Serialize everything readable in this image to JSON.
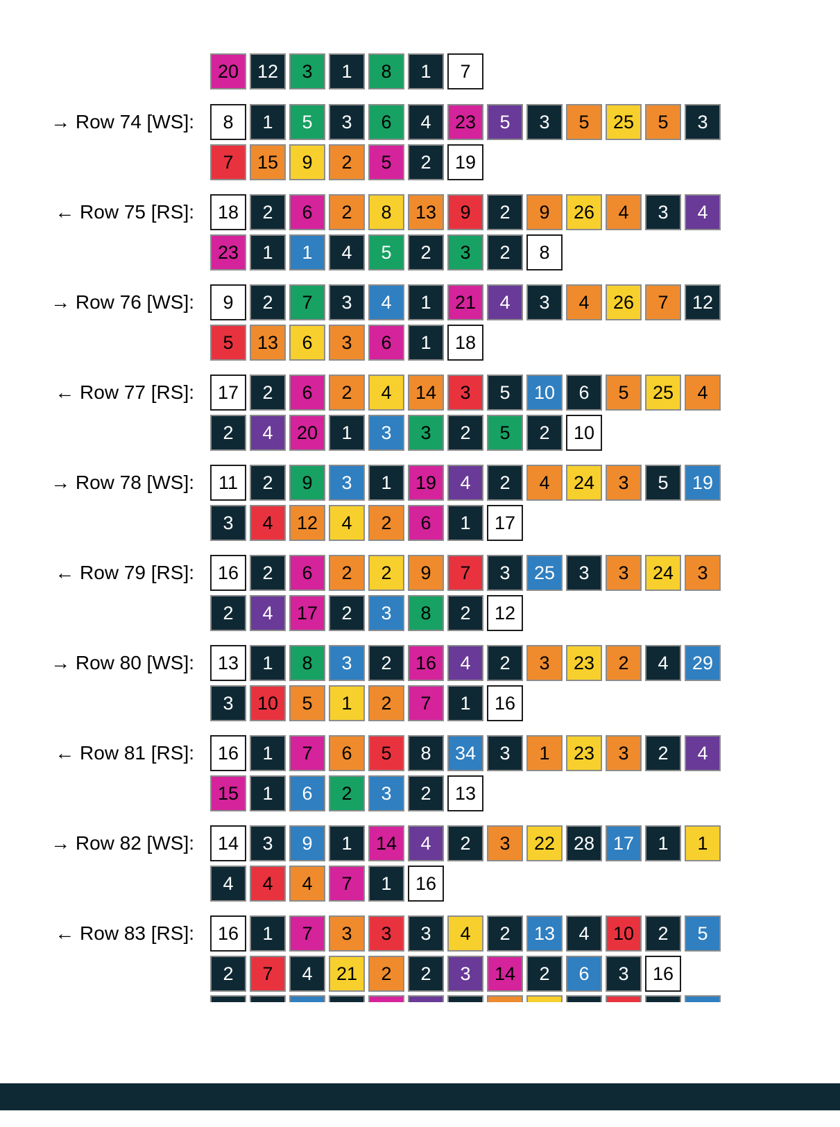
{
  "document_type": "knitting-colorwork-row-by-row-chart",
  "palette": {
    "W": {
      "name": "white",
      "bg": "#ffffff",
      "fg": "#000000",
      "border": "#1c1c1c"
    },
    "K": {
      "name": "dark-navy",
      "bg": "#0f2934",
      "fg": "#ffffff",
      "border": "#8c8c8c"
    },
    "G": {
      "name": "green",
      "bg": "#17a163",
      "fg": "#000000",
      "border": "#8c8c8c"
    },
    "G2": {
      "name": "green-white-text",
      "bg": "#17a163",
      "fg": "#ffffff",
      "border": "#8c8c8c"
    },
    "M": {
      "name": "magenta",
      "bg": "#d4239b",
      "fg": "#000000",
      "border": "#8c8c8c"
    },
    "O": {
      "name": "orange",
      "bg": "#ef8b2d",
      "fg": "#000000",
      "border": "#8c8c8c"
    },
    "Y": {
      "name": "yellow",
      "bg": "#f8d02d",
      "fg": "#000000",
      "border": "#8c8c8c"
    },
    "R": {
      "name": "red",
      "bg": "#e8333f",
      "fg": "#000000",
      "border": "#8c8c8c"
    },
    "P": {
      "name": "purple",
      "bg": "#693a97",
      "fg": "#ffffff",
      "border": "#8c8c8c"
    },
    "B": {
      "name": "blue",
      "bg": "#2f7fc1",
      "fg": "#ffffff",
      "border": "#8c8c8c"
    }
  },
  "groups": [
    {
      "label": "",
      "partial_top": true,
      "lines": [
        [
          [
            "20",
            "M"
          ],
          [
            "12",
            "K"
          ],
          [
            "3",
            "G"
          ],
          [
            "1",
            "K"
          ],
          [
            "8",
            "G"
          ],
          [
            "1",
            "K"
          ],
          [
            "7",
            "W"
          ]
        ]
      ]
    },
    {
      "label": "→ Row 74 [WS]:",
      "lines": [
        [
          [
            "8",
            "W"
          ],
          [
            "1",
            "K"
          ],
          [
            "5",
            "G2"
          ],
          [
            "3",
            "K"
          ],
          [
            "6",
            "G"
          ],
          [
            "4",
            "K"
          ],
          [
            "23",
            "M"
          ],
          [
            "5",
            "P"
          ],
          [
            "3",
            "K"
          ],
          [
            "5",
            "O"
          ],
          [
            "25",
            "Y"
          ],
          [
            "5",
            "O"
          ],
          [
            "3",
            "K"
          ]
        ],
        [
          [
            "7",
            "R"
          ],
          [
            "15",
            "O"
          ],
          [
            "9",
            "Y"
          ],
          [
            "2",
            "O"
          ],
          [
            "5",
            "M"
          ],
          [
            "2",
            "K"
          ],
          [
            "19",
            "W"
          ]
        ]
      ]
    },
    {
      "label": "← Row 75 [RS]:",
      "lines": [
        [
          [
            "18",
            "W"
          ],
          [
            "2",
            "K"
          ],
          [
            "6",
            "M"
          ],
          [
            "2",
            "O"
          ],
          [
            "8",
            "Y"
          ],
          [
            "13",
            "O"
          ],
          [
            "9",
            "R"
          ],
          [
            "2",
            "K"
          ],
          [
            "9",
            "O"
          ],
          [
            "26",
            "Y"
          ],
          [
            "4",
            "O"
          ],
          [
            "3",
            "K"
          ],
          [
            "4",
            "P"
          ]
        ],
        [
          [
            "23",
            "M"
          ],
          [
            "1",
            "K"
          ],
          [
            "1",
            "B"
          ],
          [
            "4",
            "K"
          ],
          [
            "5",
            "G2"
          ],
          [
            "2",
            "K"
          ],
          [
            "3",
            "G"
          ],
          [
            "2",
            "K"
          ],
          [
            "8",
            "W"
          ]
        ]
      ]
    },
    {
      "label": "→ Row 76 [WS]:",
      "lines": [
        [
          [
            "9",
            "W"
          ],
          [
            "2",
            "K"
          ],
          [
            "7",
            "G"
          ],
          [
            "3",
            "K"
          ],
          [
            "4",
            "B"
          ],
          [
            "1",
            "K"
          ],
          [
            "21",
            "M"
          ],
          [
            "4",
            "P"
          ],
          [
            "3",
            "K"
          ],
          [
            "4",
            "O"
          ],
          [
            "26",
            "Y"
          ],
          [
            "7",
            "O"
          ],
          [
            "12",
            "K"
          ]
        ],
        [
          [
            "5",
            "R"
          ],
          [
            "13",
            "O"
          ],
          [
            "6",
            "Y"
          ],
          [
            "3",
            "O"
          ],
          [
            "6",
            "M"
          ],
          [
            "1",
            "K"
          ],
          [
            "18",
            "W"
          ]
        ]
      ]
    },
    {
      "label": "← Row 77 [RS]:",
      "lines": [
        [
          [
            "17",
            "W"
          ],
          [
            "2",
            "K"
          ],
          [
            "6",
            "M"
          ],
          [
            "2",
            "O"
          ],
          [
            "4",
            "Y"
          ],
          [
            "14",
            "O"
          ],
          [
            "3",
            "R"
          ],
          [
            "5",
            "K"
          ],
          [
            "10",
            "B"
          ],
          [
            "6",
            "K"
          ],
          [
            "5",
            "O"
          ],
          [
            "25",
            "Y"
          ],
          [
            "4",
            "O"
          ]
        ],
        [
          [
            "2",
            "K"
          ],
          [
            "4",
            "P"
          ],
          [
            "20",
            "M"
          ],
          [
            "1",
            "K"
          ],
          [
            "3",
            "B"
          ],
          [
            "3",
            "G"
          ],
          [
            "2",
            "K"
          ],
          [
            "5",
            "G"
          ],
          [
            "2",
            "K"
          ],
          [
            "10",
            "W"
          ]
        ]
      ]
    },
    {
      "label": "→ Row 78 [WS]:",
      "lines": [
        [
          [
            "11",
            "W"
          ],
          [
            "2",
            "K"
          ],
          [
            "9",
            "G"
          ],
          [
            "3",
            "B"
          ],
          [
            "1",
            "K"
          ],
          [
            "19",
            "M"
          ],
          [
            "4",
            "P"
          ],
          [
            "2",
            "K"
          ],
          [
            "4",
            "O"
          ],
          [
            "24",
            "Y"
          ],
          [
            "3",
            "O"
          ],
          [
            "5",
            "K"
          ],
          [
            "19",
            "B"
          ]
        ],
        [
          [
            "3",
            "K"
          ],
          [
            "4",
            "R"
          ],
          [
            "12",
            "O"
          ],
          [
            "4",
            "Y"
          ],
          [
            "2",
            "O"
          ],
          [
            "6",
            "M"
          ],
          [
            "1",
            "K"
          ],
          [
            "17",
            "W"
          ]
        ]
      ]
    },
    {
      "label": "← Row 79 [RS]:",
      "lines": [
        [
          [
            "16",
            "W"
          ],
          [
            "2",
            "K"
          ],
          [
            "6",
            "M"
          ],
          [
            "2",
            "O"
          ],
          [
            "2",
            "Y"
          ],
          [
            "9",
            "O"
          ],
          [
            "7",
            "R"
          ],
          [
            "3",
            "K"
          ],
          [
            "25",
            "B"
          ],
          [
            "3",
            "K"
          ],
          [
            "3",
            "O"
          ],
          [
            "24",
            "Y"
          ],
          [
            "3",
            "O"
          ]
        ],
        [
          [
            "2",
            "K"
          ],
          [
            "4",
            "P"
          ],
          [
            "17",
            "M"
          ],
          [
            "2",
            "K"
          ],
          [
            "3",
            "B"
          ],
          [
            "8",
            "G"
          ],
          [
            "2",
            "K"
          ],
          [
            "12",
            "W"
          ]
        ]
      ]
    },
    {
      "label": "→ Row 80 [WS]:",
      "lines": [
        [
          [
            "13",
            "W"
          ],
          [
            "1",
            "K"
          ],
          [
            "8",
            "G"
          ],
          [
            "3",
            "B"
          ],
          [
            "2",
            "K"
          ],
          [
            "16",
            "M"
          ],
          [
            "4",
            "P"
          ],
          [
            "2",
            "K"
          ],
          [
            "3",
            "O"
          ],
          [
            "23",
            "Y"
          ],
          [
            "2",
            "O"
          ],
          [
            "4",
            "K"
          ],
          [
            "29",
            "B"
          ]
        ],
        [
          [
            "3",
            "K"
          ],
          [
            "10",
            "R"
          ],
          [
            "5",
            "O"
          ],
          [
            "1",
            "Y"
          ],
          [
            "2",
            "O"
          ],
          [
            "7",
            "M"
          ],
          [
            "1",
            "K"
          ],
          [
            "16",
            "W"
          ]
        ]
      ]
    },
    {
      "label": "← Row 81 [RS]:",
      "lines": [
        [
          [
            "16",
            "W"
          ],
          [
            "1",
            "K"
          ],
          [
            "7",
            "M"
          ],
          [
            "6",
            "O"
          ],
          [
            "5",
            "R"
          ],
          [
            "8",
            "K"
          ],
          [
            "34",
            "B"
          ],
          [
            "3",
            "K"
          ],
          [
            "1",
            "O"
          ],
          [
            "23",
            "Y"
          ],
          [
            "3",
            "O"
          ],
          [
            "2",
            "K"
          ],
          [
            "4",
            "P"
          ]
        ],
        [
          [
            "15",
            "M"
          ],
          [
            "1",
            "K"
          ],
          [
            "6",
            "B"
          ],
          [
            "2",
            "G"
          ],
          [
            "3",
            "B"
          ],
          [
            "2",
            "K"
          ],
          [
            "13",
            "W"
          ]
        ]
      ]
    },
    {
      "label": "→ Row 82 [WS]:",
      "lines": [
        [
          [
            "14",
            "W"
          ],
          [
            "3",
            "K"
          ],
          [
            "9",
            "B"
          ],
          [
            "1",
            "K"
          ],
          [
            "14",
            "M"
          ],
          [
            "4",
            "P"
          ],
          [
            "2",
            "K"
          ],
          [
            "3",
            "O"
          ],
          [
            "22",
            "Y"
          ],
          [
            "28",
            "K"
          ],
          [
            "17",
            "B"
          ],
          [
            "1",
            "K"
          ],
          [
            "1",
            "Y"
          ]
        ],
        [
          [
            "4",
            "K"
          ],
          [
            "4",
            "R"
          ],
          [
            "4",
            "O"
          ],
          [
            "7",
            "M"
          ],
          [
            "1",
            "K"
          ],
          [
            "16",
            "W"
          ]
        ]
      ]
    },
    {
      "label": "← Row 83 [RS]:",
      "lines": [
        [
          [
            "16",
            "W"
          ],
          [
            "1",
            "K"
          ],
          [
            "7",
            "M"
          ],
          [
            "3",
            "O"
          ],
          [
            "3",
            "R"
          ],
          [
            "3",
            "K"
          ],
          [
            "4",
            "Y"
          ],
          [
            "2",
            "K"
          ],
          [
            "13",
            "B"
          ],
          [
            "4",
            "K"
          ],
          [
            "10",
            "R"
          ],
          [
            "2",
            "K"
          ],
          [
            "5",
            "B"
          ]
        ],
        [
          [
            "2",
            "K"
          ],
          [
            "7",
            "R"
          ],
          [
            "4",
            "K"
          ],
          [
            "21",
            "Y"
          ],
          [
            "2",
            "O"
          ],
          [
            "2",
            "K"
          ],
          [
            "3",
            "P"
          ],
          [
            "14",
            "M"
          ],
          [
            "2",
            "K"
          ],
          [
            "6",
            "B"
          ],
          [
            "3",
            "K"
          ],
          [
            "16",
            "W"
          ]
        ]
      ]
    }
  ],
  "partial_bottom_colors": [
    "K",
    "K",
    "B",
    "K",
    "M",
    "P",
    "K",
    "O",
    "Y",
    "K",
    "R",
    "K",
    "B"
  ],
  "footer": {
    "bar_color": "#0f2934"
  }
}
